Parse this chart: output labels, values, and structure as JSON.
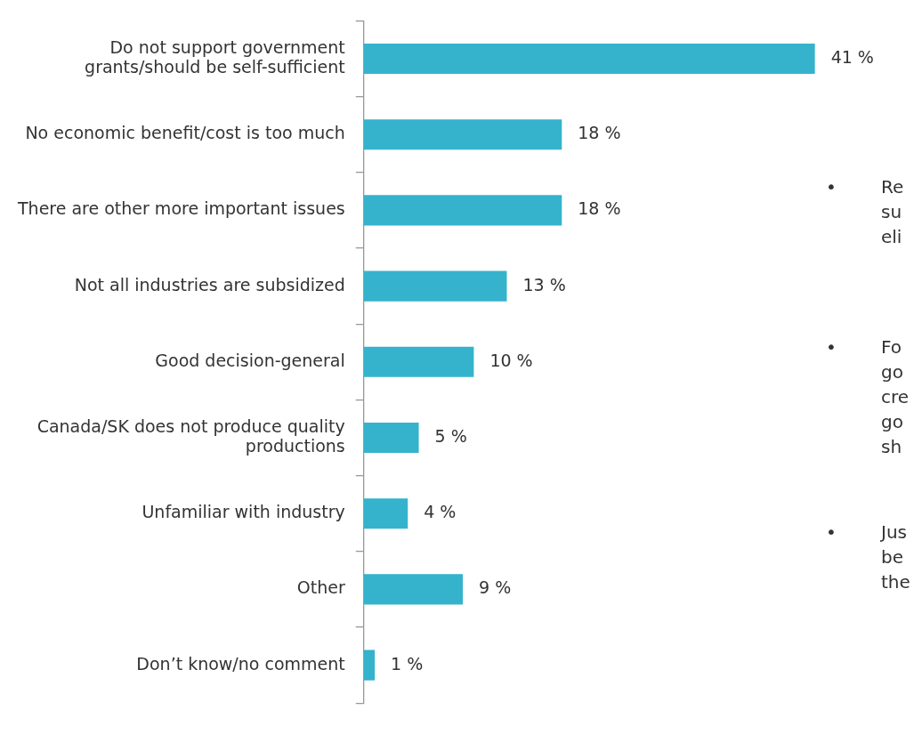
{
  "chart_data": {
    "type": "bar",
    "orientation": "horizontal",
    "categories": [
      "Do not support government grants/should be self-sufficient",
      "No economic benefit/cost is too much",
      "There are other more important issues",
      "Not all industries are subsidized",
      "Good decision-general",
      "Canada/SK does not produce quality productions",
      "Unfamiliar with industry",
      "Other",
      "Don’t know/no comment"
    ],
    "values": [
      41,
      18,
      18,
      13,
      10,
      5,
      4,
      9,
      1
    ],
    "value_labels": [
      "41 %",
      "18 %",
      "18 %",
      "13 %",
      "10 %",
      "5 %",
      "4 %",
      "9 %",
      "1 %"
    ],
    "color": "#35b3cc",
    "legend": false,
    "tick_labels": "y",
    "annotations": [
      "• Re su eli",
      "• Fo go cre go sh",
      "• Jus be the"
    ]
  }
}
